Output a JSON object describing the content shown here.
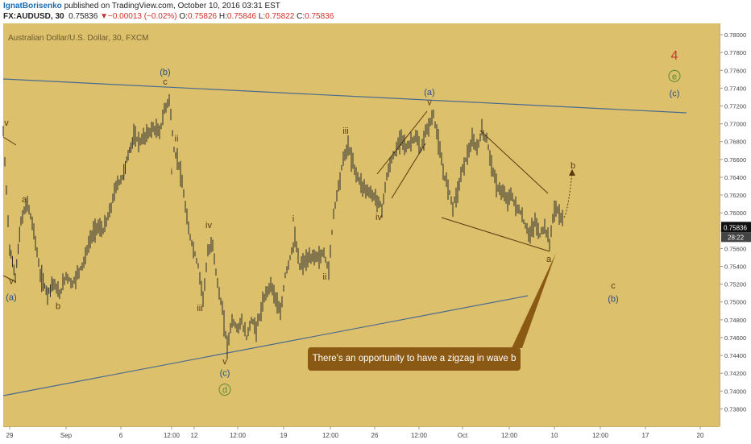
{
  "header": {
    "author": "IgnatBorisenko",
    "published_text": " published on TradingView.com, October 10, 2016 03:31 EST",
    "symbol": "FX:AUDUSD, 30",
    "last": "0.75836",
    "change_arrow": "▼",
    "change": "−0.00013 (−0.02%)",
    "o_label": "O:",
    "o_value": "0.75826",
    "h_label": "H:",
    "h_value": "0.75846",
    "l_label": "L:",
    "l_value": "0.75822",
    "c_label": "C:",
    "c_value": "0.75836"
  },
  "chart_title": "Australian Dollar/U.S. Dollar, 30, FXCM",
  "colors": {
    "background": "#dcc06c",
    "trendline": "#4a6a8e",
    "candle": "#2b2b2b",
    "wave_blue": "#2a4f86",
    "wave_brown": "#5a3a10",
    "wave_green": "#5c8a30",
    "wave4": "#c0392b",
    "callout": "#8a5a14"
  },
  "chart_data": {
    "type": "candlestick",
    "title": "Australian Dollar/U.S. Dollar, 30, FXCM",
    "ylim": [
      0.7365,
      0.781
    ],
    "y_ticks": [
      "0.78000",
      "0.77800",
      "0.77600",
      "0.77400",
      "0.77200",
      "0.77000",
      "0.76800",
      "0.76600",
      "0.76400",
      "0.76200",
      "0.76000",
      "0.75800",
      "0.75600",
      "0.75400",
      "0.75200",
      "0.75000",
      "0.74800",
      "0.74600",
      "0.74400",
      "0.74200",
      "0.74000",
      "0.73800"
    ],
    "x_ticks": [
      "29",
      "Sep",
      "6",
      "12:00",
      "12",
      "12:00",
      "19",
      "12:00",
      "26",
      "12:00",
      "Oct",
      "12:00",
      "10",
      "12:00",
      "17",
      "20"
    ],
    "last_price_label": "0.75836",
    "countdown_label": "28:22",
    "price_path": [
      [
        0,
        0.769
      ],
      [
        8,
        0.756
      ],
      [
        15,
        0.7528
      ],
      [
        22,
        0.759
      ],
      [
        30,
        0.7612
      ],
      [
        38,
        0.758
      ],
      [
        46,
        0.753
      ],
      [
        55,
        0.751
      ],
      [
        62,
        0.7522
      ],
      [
        70,
        0.7508
      ],
      [
        78,
        0.753
      ],
      [
        86,
        0.752
      ],
      [
        94,
        0.7535
      ],
      [
        100,
        0.7545
      ],
      [
        108,
        0.757
      ],
      [
        116,
        0.7585
      ],
      [
        124,
        0.758
      ],
      [
        132,
        0.76
      ],
      [
        140,
        0.763
      ],
      [
        148,
        0.764
      ],
      [
        155,
        0.7665
      ],
      [
        162,
        0.7685
      ],
      [
        170,
        0.768
      ],
      [
        178,
        0.7688
      ],
      [
        186,
        0.7695
      ],
      [
        194,
        0.769
      ],
      [
        200,
        0.7715
      ],
      [
        206,
        0.7728
      ],
      [
        212,
        0.767
      ],
      [
        218,
        0.7655
      ],
      [
        224,
        0.762
      ],
      [
        230,
        0.758
      ],
      [
        236,
        0.756
      ],
      [
        242,
        0.754
      ],
      [
        248,
        0.7505
      ],
      [
        254,
        0.7555
      ],
      [
        260,
        0.7565
      ],
      [
        266,
        0.752
      ],
      [
        272,
        0.749
      ],
      [
        278,
        0.745
      ],
      [
        284,
        0.748
      ],
      [
        290,
        0.747
      ],
      [
        296,
        0.7478
      ],
      [
        302,
        0.746
      ],
      [
        308,
        0.748
      ],
      [
        314,
        0.747
      ],
      [
        320,
        0.749
      ],
      [
        326,
        0.751
      ],
      [
        332,
        0.752
      ],
      [
        338,
        0.7505
      ],
      [
        344,
        0.7485
      ],
      [
        350,
        0.753
      ],
      [
        356,
        0.755
      ],
      [
        362,
        0.757
      ],
      [
        368,
        0.754
      ],
      [
        374,
        0.7545
      ],
      [
        380,
        0.7548
      ],
      [
        386,
        0.7552
      ],
      [
        392,
        0.755
      ],
      [
        398,
        0.7555
      ],
      [
        404,
        0.7535
      ],
      [
        410,
        0.76
      ],
      [
        416,
        0.763
      ],
      [
        422,
        0.766
      ],
      [
        428,
        0.7675
      ],
      [
        434,
        0.7655
      ],
      [
        440,
        0.764
      ],
      [
        446,
        0.763
      ],
      [
        452,
        0.7625
      ],
      [
        458,
        0.762
      ],
      [
        464,
        0.7615
      ],
      [
        470,
        0.7605
      ],
      [
        476,
        0.764
      ],
      [
        482,
        0.766
      ],
      [
        488,
        0.767
      ],
      [
        494,
        0.7688
      ],
      [
        500,
        0.7672
      ],
      [
        506,
        0.768
      ],
      [
        512,
        0.7685
      ],
      [
        518,
        0.767
      ],
      [
        524,
        0.769
      ],
      [
        530,
        0.7702
      ],
      [
        534,
        0.771
      ],
      [
        540,
        0.768
      ],
      [
        546,
        0.7645
      ],
      [
        552,
        0.763
      ],
      [
        558,
        0.7608
      ],
      [
        564,
        0.7625
      ],
      [
        570,
        0.765
      ],
      [
        576,
        0.7665
      ],
      [
        582,
        0.768
      ],
      [
        588,
        0.7672
      ],
      [
        594,
        0.7692
      ],
      [
        600,
        0.7682
      ],
      [
        606,
        0.7655
      ],
      [
        612,
        0.763
      ],
      [
        618,
        0.7625
      ],
      [
        624,
        0.7615
      ],
      [
        630,
        0.762
      ],
      [
        636,
        0.7608
      ],
      [
        642,
        0.76
      ],
      [
        648,
        0.7585
      ],
      [
        654,
        0.7575
      ],
      [
        660,
        0.759
      ],
      [
        666,
        0.7575
      ],
      [
        672,
        0.7585
      ],
      [
        678,
        0.7565
      ],
      [
        682,
        0.7595
      ],
      [
        686,
        0.7605
      ],
      [
        690,
        0.76
      ],
      [
        694,
        0.759
      ],
      [
        696,
        0.7584
      ]
    ],
    "annotations": [
      {
        "text": "v",
        "x": 8,
        "y": 0.7698,
        "color": "brown"
      },
      {
        "text": "a",
        "x": 30,
        "y": 0.7612,
        "color": "brown"
      },
      {
        "text": "v",
        "x": 14,
        "y": 0.752,
        "color": "brown"
      },
      {
        "text": "(a)",
        "x": 14,
        "y": 0.7502,
        "color": "blue"
      },
      {
        "text": "b",
        "x": 72,
        "y": 0.7492,
        "color": "brown"
      },
      {
        "text": "(b)",
        "x": 205,
        "y": 0.7755,
        "color": "blue"
      },
      {
        "text": "c",
        "x": 205,
        "y": 0.7744,
        "color": "brown"
      },
      {
        "text": "ii",
        "x": 219,
        "y": 0.768,
        "color": "brown"
      },
      {
        "text": "i",
        "x": 213,
        "y": 0.7643,
        "color": "brown"
      },
      {
        "text": "iv",
        "x": 259,
        "y": 0.7583,
        "color": "brown"
      },
      {
        "text": "iii",
        "x": 248,
        "y": 0.749,
        "color": "brown"
      },
      {
        "text": "v",
        "x": 279,
        "y": 0.743,
        "color": "brown"
      },
      {
        "text": "(c)",
        "x": 279,
        "y": 0.7417,
        "color": "blue"
      },
      {
        "text": "d",
        "x": 279,
        "y": 0.7398,
        "color": "green",
        "circled": true
      },
      {
        "text": "i",
        "x": 364,
        "y": 0.759,
        "color": "brown"
      },
      {
        "text": "ii",
        "x": 403,
        "y": 0.7525,
        "color": "brown"
      },
      {
        "text": "iii",
        "x": 429,
        "y": 0.7689,
        "color": "brown"
      },
      {
        "text": "iv",
        "x": 470,
        "y": 0.7592,
        "color": "brown"
      },
      {
        "text": "(a)",
        "x": 533,
        "y": 0.7732,
        "color": "blue"
      },
      {
        "text": "v",
        "x": 533,
        "y": 0.7721,
        "color": "brown"
      },
      {
        "text": "b",
        "x": 711,
        "y": 0.765,
        "color": "brown"
      },
      {
        "text": "a",
        "x": 681,
        "y": 0.7545,
        "color": "brown"
      },
      {
        "text": "c",
        "x": 761,
        "y": 0.7515,
        "color": "brown"
      },
      {
        "text": "(b)",
        "x": 761,
        "y": 0.75,
        "color": "blue"
      },
      {
        "text": "4",
        "x": 837,
        "y": 0.7772,
        "color": "red"
      },
      {
        "text": "e",
        "x": 837,
        "y": 0.775,
        "color": "green",
        "circled": true
      },
      {
        "text": "(c)",
        "x": 837,
        "y": 0.7731,
        "color": "blue"
      }
    ]
  },
  "callout_text": "There's an opportunity to have a zigzag in wave b"
}
